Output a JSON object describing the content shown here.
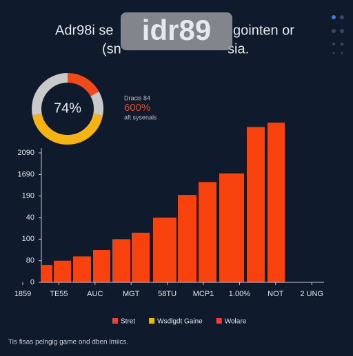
{
  "header": {
    "title_start": "Adr98i se",
    "badge": "idr89",
    "title_end": "gointen or",
    "subtitle_start": "(sn",
    "subtitle_end": "sia."
  },
  "chart_data": [
    {
      "type": "donut",
      "center_label": "74%",
      "values": [
        17,
        11,
        44,
        28
      ],
      "colors": [
        "#f04a1c",
        "#c9c9c9",
        "#f5b316",
        "#c9c9c9"
      ],
      "annotation": {
        "title": "Dracis 84",
        "value": "600%",
        "caption": "aft sysenals"
      }
    },
    {
      "type": "bar",
      "values": [
        0.8,
        1.0,
        1.2,
        1.5,
        2.0,
        2.3,
        3.0,
        4.05,
        4.65,
        5.05,
        7.2,
        7.4
      ],
      "color": "#f7420e",
      "ylim": [
        0,
        7.5
      ],
      "yticks": [
        0,
        {
          "value": 1,
          "label": "80"
        },
        {
          "value": 2,
          "label": "100"
        },
        {
          "value": 3,
          "label": "40"
        },
        {
          "value": 4,
          "label": "190"
        },
        {
          "value": 5,
          "label": "1690"
        },
        {
          "value": 6,
          "label": "2090"
        }
      ],
      "x_tick_labels": [
        "1859",
        "TE55",
        "AUC",
        "MGT",
        "58TU",
        "MCP1",
        "1.00%",
        "NOT",
        "2 UNG"
      ],
      "legend": [
        {
          "name": "Stret",
          "color": "#ef4423"
        },
        {
          "name": "Wsdlgdt Gaine",
          "color": "#f5b316"
        },
        {
          "name": "Wolare",
          "color": "#ef4423"
        }
      ],
      "footnote": "Tis fisas pelngig game ond dben lmiics."
    }
  ]
}
